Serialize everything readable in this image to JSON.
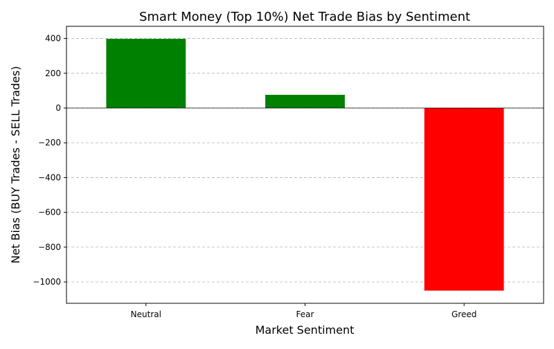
{
  "chart_data": {
    "type": "bar",
    "title": "Smart Money (Top 10%) Net Trade Bias by Sentiment",
    "xlabel": "Market Sentiment",
    "ylabel": "Net Bias (BUY Trades - SELL Trades)",
    "categories": [
      "Neutral",
      "Fear",
      "Greed"
    ],
    "values": [
      398,
      76,
      -1050
    ],
    "colors": [
      "#008000",
      "#008000",
      "#ff0000"
    ],
    "ylim": [
      -1123,
      470
    ],
    "yticks": [
      400,
      200,
      0,
      -200,
      -400,
      -600,
      -800,
      -1000
    ],
    "ytick_labels": [
      "400",
      "200",
      "0",
      "−200",
      "−400",
      "−600",
      "−800",
      "−1000"
    ],
    "grid": "y-dashed",
    "zero_line": true
  }
}
